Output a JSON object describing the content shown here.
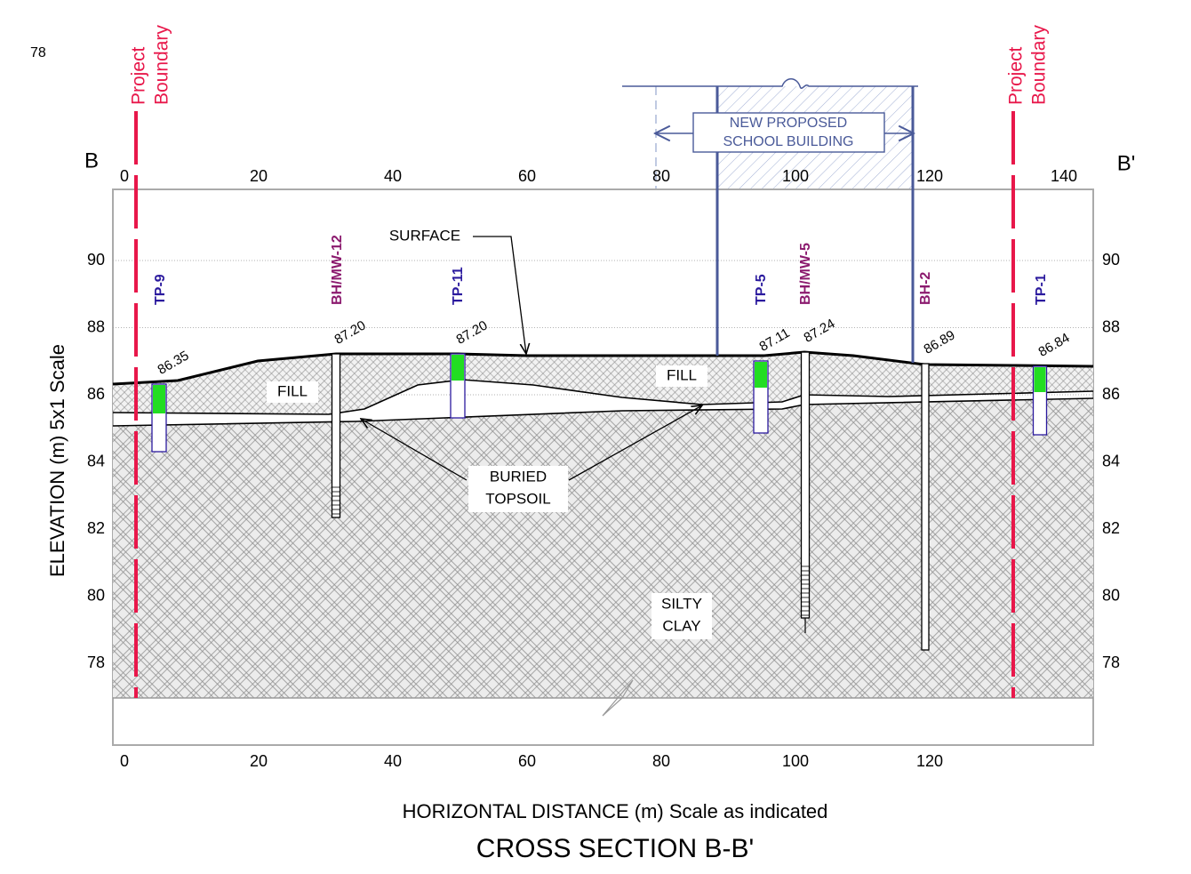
{
  "corner_label": "78",
  "project_boundary": {
    "left": [
      "Project",
      "Boundary"
    ],
    "right": [
      "Project",
      "Boundary"
    ]
  },
  "section_ends": {
    "start": "B",
    "end": "B'"
  },
  "building_label": [
    "NEW PROPOSED",
    "SCHOOL BUILDING"
  ],
  "x_axis": {
    "label": "HORIZONTAL DISTANCE (m) Scale as indicated",
    "top_ticks": [
      0,
      20,
      40,
      60,
      80,
      100,
      120,
      140
    ],
    "bottom_ticks": [
      0,
      20,
      40,
      60,
      80,
      100,
      120
    ]
  },
  "y_axis": {
    "label": "ELEVATION (m) 5x1 Scale",
    "ticks": [
      78,
      80,
      82,
      84,
      86,
      88,
      90
    ]
  },
  "boreholes": [
    {
      "name": "TP-9",
      "elevation": "86.35"
    },
    {
      "name": "BH/MW-12",
      "elevation": "87.20"
    },
    {
      "name": "TP-11",
      "elevation": "87.20"
    },
    {
      "name": "TP-5",
      "elevation": "87.11"
    },
    {
      "name": "BH/MW-5",
      "elevation": "87.24"
    },
    {
      "name": "BH-2",
      "elevation": "86.89"
    },
    {
      "name": "TP-1",
      "elevation": "86.84"
    }
  ],
  "annotations": {
    "surface": "SURFACE",
    "fill_left": "FILL",
    "fill_right": "FILL",
    "buried_topsoil": [
      "BURIED",
      "TOPSOIL"
    ],
    "silty_clay": [
      "SILTY",
      "CLAY"
    ]
  },
  "title": "CROSS SECTION B-B'"
}
